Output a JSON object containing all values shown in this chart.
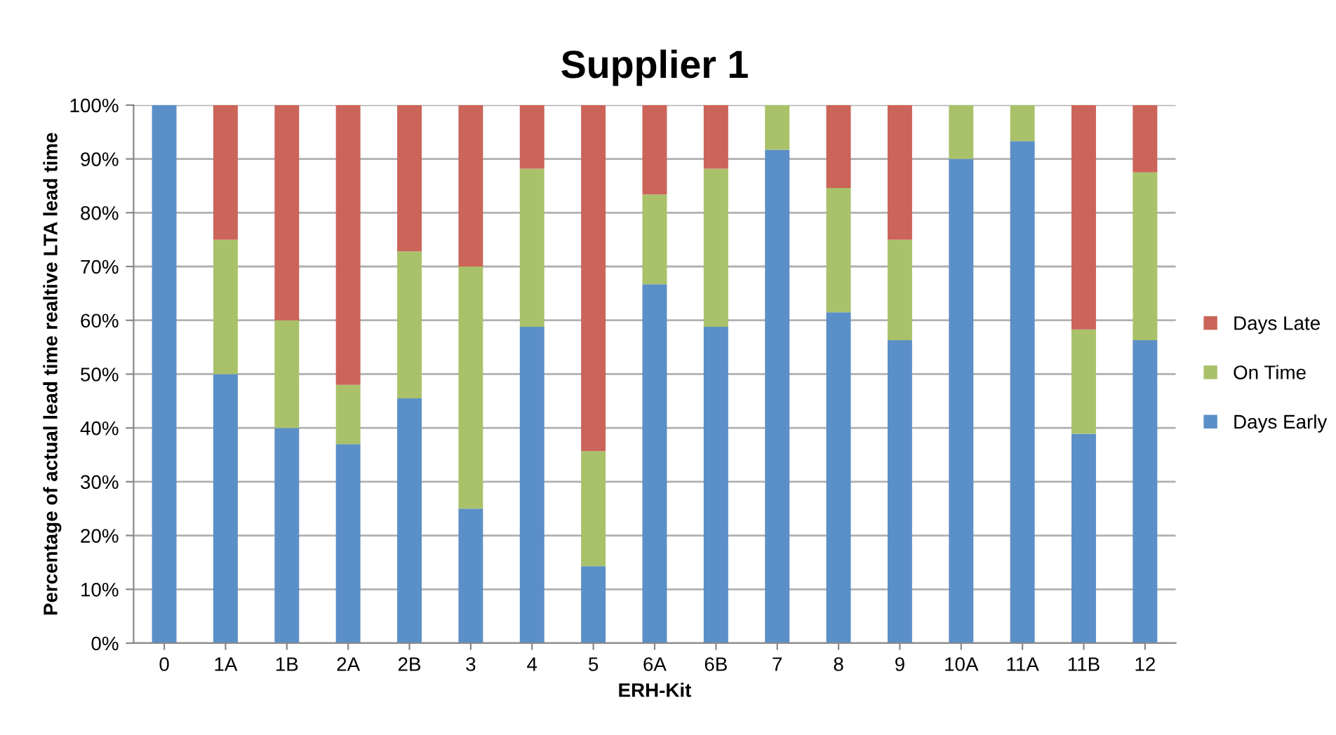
{
  "chart_data": {
    "type": "bar",
    "title": "Supplier 1",
    "xlabel": "ERH-Kit",
    "ylabel": "Percentage of actual lead time realtive LTA lead time",
    "categories": [
      "0",
      "1A",
      "1B",
      "2A",
      "2B",
      "3",
      "4",
      "5",
      "6A",
      "6B",
      "7",
      "8",
      "9",
      "10A",
      "11A",
      "11B",
      "12"
    ],
    "stacked": true,
    "series": [
      {
        "name": "Days Early",
        "color": "#5b8fc7",
        "values": [
          100,
          50,
          40,
          37,
          45.5,
          25,
          58.8,
          14.3,
          66.7,
          58.8,
          91.7,
          61.5,
          56.3,
          90,
          93.3,
          38.9,
          56.3
        ]
      },
      {
        "name": "On Time",
        "color": "#a9c26a",
        "values": [
          0,
          25,
          20,
          11,
          27.3,
          45,
          29.4,
          21.4,
          16.7,
          29.4,
          8.3,
          23.1,
          18.7,
          10,
          6.7,
          19.4,
          31.2
        ]
      },
      {
        "name": "Days Late",
        "color": "#cb6459",
        "values": [
          0,
          25,
          40,
          52,
          27.2,
          30,
          11.8,
          64.3,
          16.6,
          11.8,
          0,
          15.4,
          25,
          0,
          0,
          41.7,
          12.5
        ]
      }
    ],
    "ylim": [
      0,
      100
    ],
    "yticks": [
      {
        "value": 0,
        "label": "0%"
      },
      {
        "value": 10,
        "label": "10%"
      },
      {
        "value": 20,
        "label": "20%"
      },
      {
        "value": 30,
        "label": "30%"
      },
      {
        "value": 40,
        "label": "40%"
      },
      {
        "value": 50,
        "label": "50%"
      },
      {
        "value": 60,
        "label": "60%"
      },
      {
        "value": 70,
        "label": "70%"
      },
      {
        "value": 80,
        "label": "80%"
      },
      {
        "value": 90,
        "label": "90%"
      },
      {
        "value": 100,
        "label": "100%"
      }
    ],
    "grid": "y",
    "legend": "right"
  }
}
